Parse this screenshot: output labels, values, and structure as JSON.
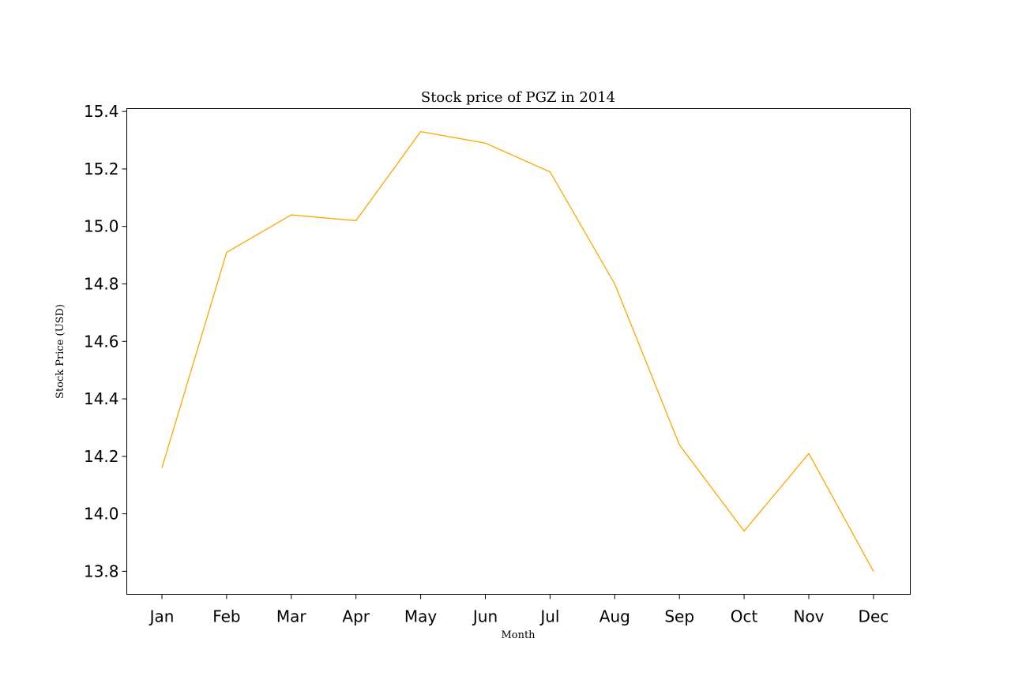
{
  "chart_data": {
    "type": "line",
    "title": "Stock price of PGZ in 2014",
    "xlabel": "Month",
    "ylabel": "Stock Price (USD)",
    "categories": [
      "Jan",
      "Feb",
      "Mar",
      "Apr",
      "May",
      "Jun",
      "Jul",
      "Aug",
      "Sep",
      "Oct",
      "Nov",
      "Dec"
    ],
    "series": [
      {
        "values": [
          14.16,
          14.91,
          15.04,
          15.02,
          15.33,
          15.29,
          15.19,
          14.8,
          14.24,
          13.94,
          14.21,
          13.8
        ],
        "color": "#ffa500"
      }
    ],
    "ylim": [
      13.72,
      15.41
    ],
    "yticks": [
      13.8,
      14.0,
      14.2,
      14.4,
      14.6,
      14.8,
      15.0,
      15.2,
      15.4
    ],
    "grid": false,
    "legend": "none"
  }
}
